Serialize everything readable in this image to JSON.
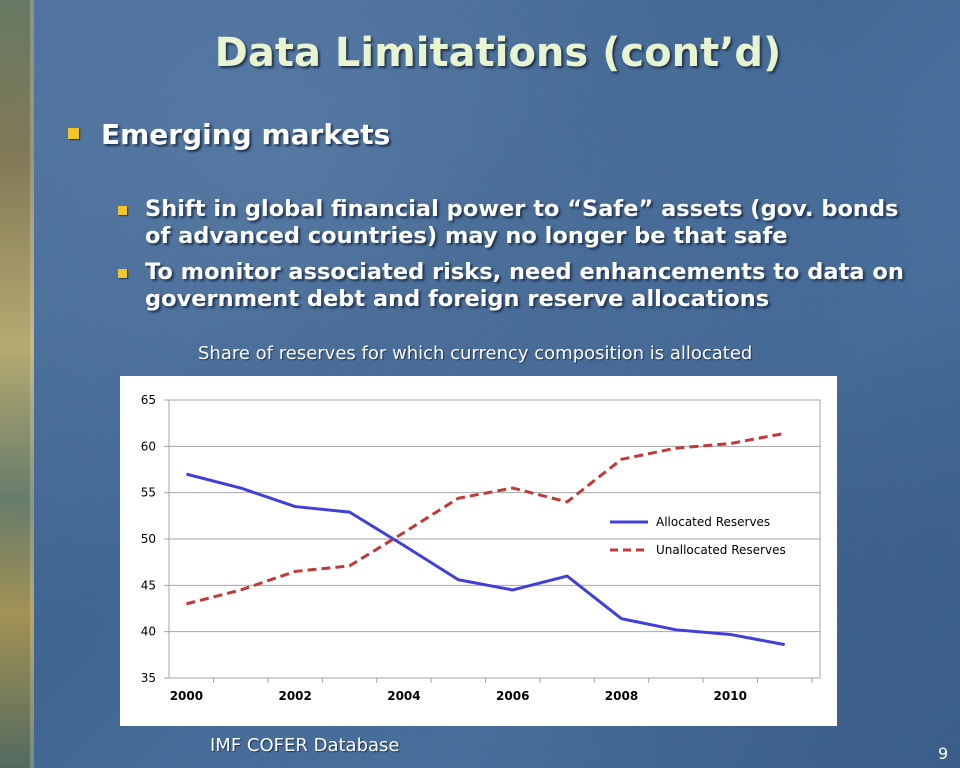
{
  "slide": {
    "title": "Data Limitations (cont’d)",
    "bullet": "Emerging markets",
    "sub_bullets": [
      "Shift in global financial power to “Safe” assets (gov. bonds of advanced countries) may no longer be that safe",
      "To monitor associated risks, need enhancements to data on government debt and foreign reserve allocations"
    ],
    "chart_caption": "Share of reserves for which currency composition is allocated",
    "source": "IMF COFER Database",
    "page_number": "9"
  },
  "colors": {
    "title": "#e8f3cf",
    "bullet": "#f2c52b",
    "allocated": "#4040d8",
    "unallocated": "#c0393b"
  },
  "chart_data": {
    "type": "line",
    "x": [
      2000,
      2001,
      2002,
      2003,
      2004,
      2005,
      2006,
      2007,
      2008,
      2009,
      2010,
      2011
    ],
    "x_tick_labels": [
      "2000",
      "2002",
      "2004",
      "2006",
      "2008",
      "2010"
    ],
    "y_tick_labels": [
      "35",
      "40",
      "45",
      "50",
      "55",
      "60",
      "65"
    ],
    "ylim": [
      35,
      65
    ],
    "grid": true,
    "legend_position": "right",
    "series": [
      {
        "name": "Allocated Reserves",
        "style": "solid",
        "values": [
          57.0,
          55.5,
          53.5,
          52.9,
          49.3,
          45.6,
          44.5,
          46.0,
          41.4,
          40.2,
          39.7,
          38.6
        ]
      },
      {
        "name": "Unallocated Reserves",
        "style": "dashed",
        "values": [
          43.0,
          44.5,
          46.5,
          47.1,
          50.7,
          54.4,
          55.5,
          54.0,
          58.6,
          59.8,
          60.3,
          61.4
        ]
      }
    ]
  }
}
